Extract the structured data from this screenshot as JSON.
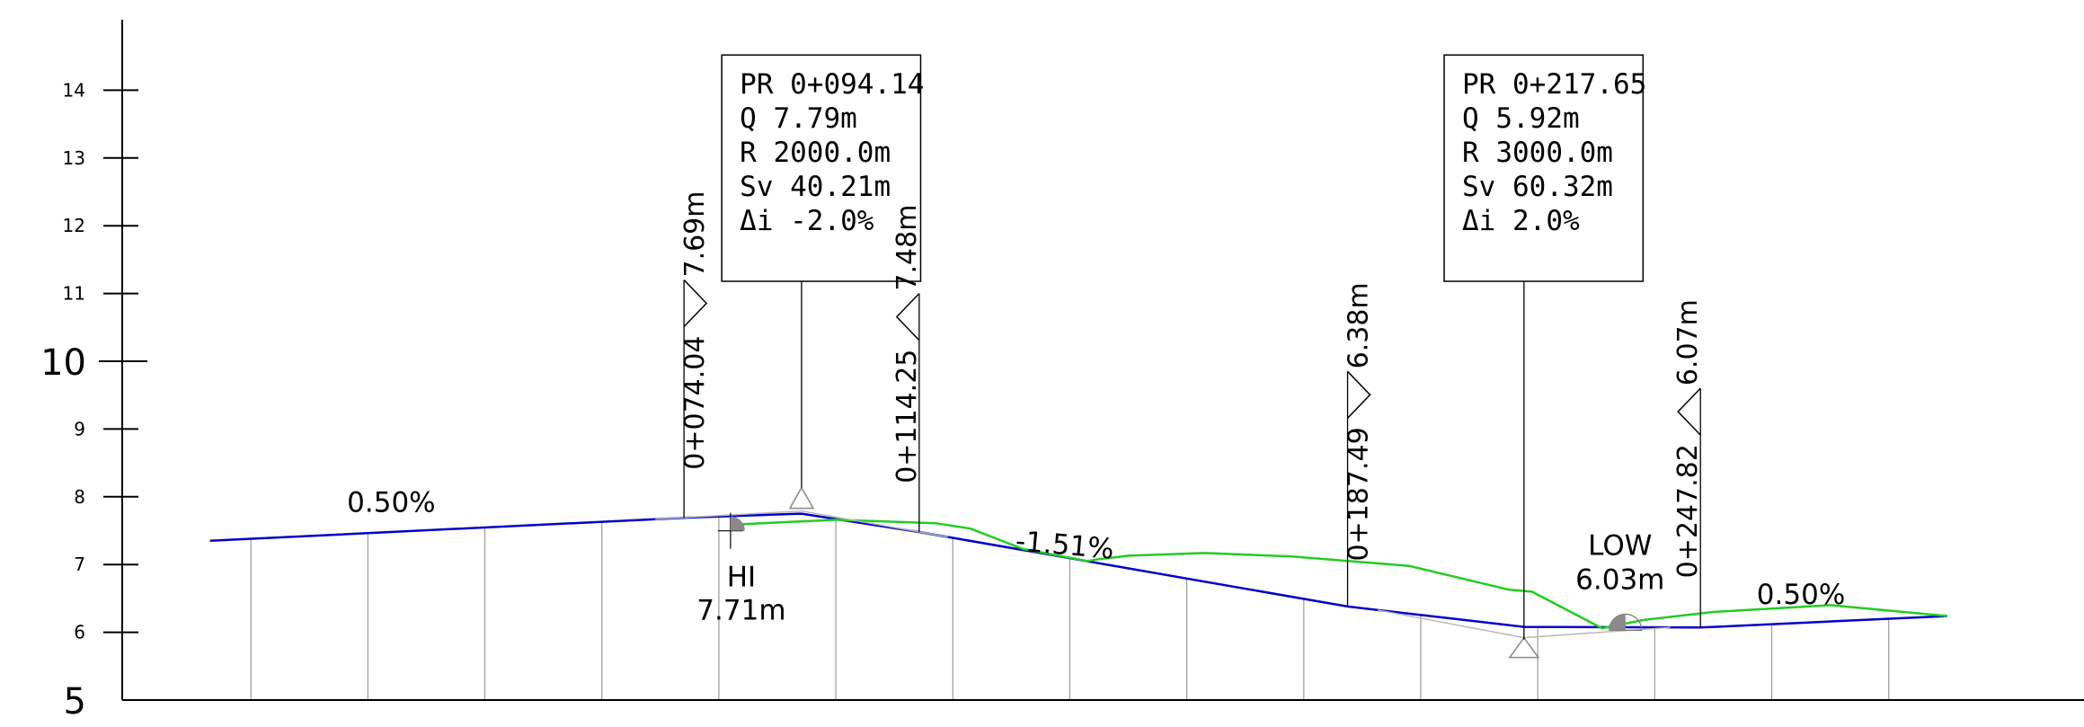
{
  "chart_data": {
    "type": "line",
    "title": "",
    "xlabel": "",
    "ylabel": "",
    "xlim": [
      -22,
      316
    ],
    "ylim": [
      5,
      15
    ],
    "y_ticks": [
      5,
      6,
      7,
      8,
      9,
      10,
      11,
      12,
      13,
      14
    ],
    "grid_stations": [
      0,
      20,
      40,
      60,
      80,
      100,
      120,
      140,
      160,
      180,
      200,
      220,
      240,
      260,
      280
    ],
    "colors": {
      "design": "#0000cc",
      "ground": "#22cc22",
      "axis": "#000000",
      "grid": "#9a9a9a"
    },
    "series": [
      {
        "key": "design",
        "x": [
          -7,
          74.04,
          94.14,
          114.25,
          187.49,
          217.65,
          247.82,
          290
        ],
        "y": [
          7.35,
          7.69,
          7.75,
          7.48,
          6.38,
          6.08,
          6.07,
          6.24
        ]
      },
      {
        "key": "ground",
        "x": [
          82,
          85,
          100,
          117,
          123,
          132,
          143,
          145,
          150,
          163,
          178,
          198,
          215,
          219,
          231,
          238,
          250,
          270,
          290
        ],
        "y": [
          7.58,
          7.6,
          7.66,
          7.61,
          7.53,
          7.23,
          7.05,
          7.08,
          7.13,
          7.17,
          7.12,
          6.98,
          6.63,
          6.6,
          6.06,
          6.18,
          6.3,
          6.4,
          6.24
        ]
      }
    ],
    "vertical_curves": [
      {
        "pr": "PR  0+094.14",
        "q": "Q   7.79m",
        "r": "R   2000.0m",
        "sv": "Sv  40.21m",
        "di": "Δi  -2.0%",
        "pvi_x": 94.14,
        "pvi_y": 7.79,
        "box_x": [
          80.5,
          114.5
        ],
        "box_y": [
          11.18,
          14.52
        ]
      },
      {
        "pr": "PR  0+217.65",
        "q": "Q   5.92m",
        "r": "R   3000.0m",
        "sv": "Sv  60.32m",
        "di": "Δi  2.0%",
        "pvi_x": 217.65,
        "pvi_y": 5.92,
        "box_x": [
          204,
          238
        ],
        "box_y": [
          11.18,
          14.52
        ]
      }
    ],
    "curve_points": [
      {
        "station_label": "0+074.04",
        "elev_label": "7.69m",
        "x": 74.04,
        "y": 7.69,
        "flag_top": 11.2,
        "flag": "right"
      },
      {
        "station_label": "0+114.25",
        "elev_label": "7.48m",
        "x": 114.25,
        "y": 7.48,
        "flag_top": 11.0,
        "flag": "left"
      },
      {
        "station_label": "0+187.49",
        "elev_label": "6.38m",
        "x": 187.49,
        "y": 6.38,
        "flag_top": 9.85,
        "flag": "right"
      },
      {
        "station_label": "0+247.82",
        "elev_label": "6.07m",
        "x": 247.82,
        "y": 6.07,
        "flag_top": 9.6,
        "flag": "left"
      }
    ],
    "grades": [
      {
        "label": "0.50%",
        "x": 24,
        "y": 7.78,
        "angle": 0
      },
      {
        "label": "-1.51%",
        "x": 139,
        "y": 7.15,
        "angle": 5
      },
      {
        "label": "0.50%",
        "x": 265,
        "y": 6.42,
        "angle": 0
      }
    ],
    "high_point": {
      "label": "HI",
      "value": "7.71m",
      "x": 82,
      "y": 7.71
    },
    "low_point": {
      "label": "LOW",
      "value": "6.03m",
      "x": 235,
      "y": 6.03
    }
  }
}
